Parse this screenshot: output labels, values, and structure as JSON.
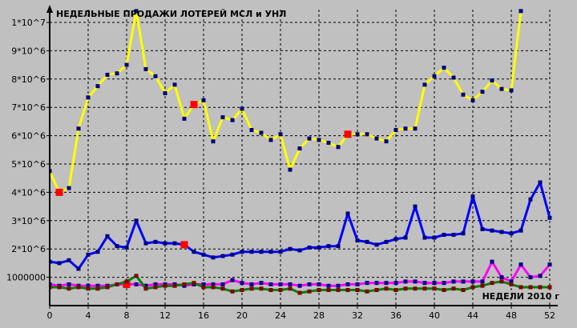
{
  "chart_data": {
    "type": "line",
    "title": "НЕДЕЛЬНЫЕ ПРОДАЖИ ЛОТЕРЕЙ МСЛ и УНЛ",
    "xlabel": "НЕДЕЛИ 2010 г",
    "ylabel": "",
    "xlim": [
      0,
      52
    ],
    "ylim": [
      0,
      10000000
    ],
    "grid": true,
    "x_ticks": [
      0,
      4,
      8,
      12,
      16,
      20,
      24,
      28,
      32,
      36,
      40,
      44,
      48,
      52
    ],
    "x_tick_labels": [
      "0",
      "4",
      "8",
      "12",
      "16",
      "20",
      "24",
      "28",
      "32",
      "36",
      "40",
      "44",
      "48",
      "52"
    ],
    "y_ticks": [
      1000000,
      2000000,
      3000000,
      4000000,
      5000000,
      6000000,
      7000000,
      8000000,
      9000000,
      10000000
    ],
    "y_tick_labels": [
      "1000000",
      "2*10^6",
      "3*10^6",
      "4*10^6",
      "5*10^6",
      "6*10^6",
      "7*10^6",
      "8*10^6",
      "9*10^6",
      "1*10^7"
    ],
    "colors": {
      "background": "#c0c0c0",
      "axis": "#000000",
      "grid": "#000000",
      "series_yellow": "#ffff00",
      "series_blue": "#0000ff",
      "series_magenta": "#ff00ff",
      "series_green": "#008000",
      "marker_dark": "#000080",
      "marker_highlight": "#ff0000"
    },
    "series": [
      {
        "color": "#ffff00",
        "marker": "#000080",
        "x": [
          0,
          1,
          2,
          3,
          4,
          5,
          6,
          7,
          8,
          9,
          10,
          11,
          12,
          13,
          14,
          15,
          16,
          17,
          18,
          19,
          20,
          21,
          22,
          23,
          24,
          25,
          26,
          27,
          28,
          29,
          30,
          31,
          32,
          33,
          34,
          35,
          36,
          37,
          38,
          39,
          40,
          41,
          42,
          43,
          44,
          45,
          46,
          47,
          48,
          49
        ],
        "values": [
          4750000,
          4000000,
          4150000,
          6250000,
          7350000,
          7750000,
          8150000,
          8200000,
          8500000,
          10400000,
          8350000,
          8100000,
          7500000,
          7800000,
          6600000,
          7100000,
          7250000,
          5800000,
          6650000,
          6550000,
          6950000,
          6200000,
          6100000,
          5850000,
          6050000,
          4800000,
          5550000,
          5900000,
          5850000,
          5750000,
          5600000,
          6050000,
          6050000,
          6050000,
          5900000,
          5800000,
          6200000,
          6250000,
          6250000,
          7800000,
          8100000,
          8400000,
          8050000,
          7450000,
          7250000,
          7550000,
          7950000,
          7650000,
          7600000,
          10400000
        ],
        "highlights": [
          1,
          15,
          31
        ]
      },
      {
        "color": "#0000ff",
        "marker": "#000080",
        "x": [
          0,
          1,
          2,
          3,
          4,
          5,
          6,
          7,
          8,
          9,
          10,
          11,
          12,
          13,
          14,
          15,
          16,
          17,
          18,
          19,
          20,
          21,
          22,
          23,
          24,
          25,
          26,
          27,
          28,
          29,
          30,
          31,
          32,
          33,
          34,
          35,
          36,
          37,
          38,
          39,
          40,
          41,
          42,
          43,
          44,
          45,
          46,
          47,
          48,
          49,
          50,
          51,
          52
        ],
        "values": [
          1550000,
          1500000,
          1600000,
          1300000,
          1800000,
          1900000,
          2450000,
          2100000,
          2050000,
          3000000,
          2200000,
          2250000,
          2200000,
          2200000,
          2150000,
          1900000,
          1800000,
          1700000,
          1750000,
          1800000,
          1900000,
          1900000,
          1900000,
          1900000,
          1900000,
          2000000,
          1950000,
          2050000,
          2050000,
          2100000,
          2100000,
          3250000,
          2300000,
          2250000,
          2150000,
          2250000,
          2350000,
          2400000,
          3500000,
          2400000,
          2400000,
          2500000,
          2500000,
          2550000,
          3850000,
          2700000,
          2650000,
          2600000,
          2550000,
          2650000,
          3750000,
          4350000,
          3100000
        ],
        "highlights": [
          14
        ]
      },
      {
        "color": "#ff00ff",
        "marker": "#000080",
        "x": [
          0,
          1,
          2,
          3,
          4,
          5,
          6,
          7,
          8,
          9,
          10,
          11,
          12,
          13,
          14,
          15,
          16,
          17,
          18,
          19,
          20,
          21,
          22,
          23,
          24,
          25,
          26,
          27,
          28,
          29,
          30,
          31,
          32,
          33,
          34,
          35,
          36,
          37,
          38,
          39,
          40,
          41,
          42,
          43,
          44,
          45,
          46,
          47,
          48,
          49,
          50,
          51,
          52
        ],
        "values": [
          750000,
          700000,
          750000,
          700000,
          700000,
          700000,
          700000,
          750000,
          750000,
          750000,
          700000,
          750000,
          750000,
          750000,
          700000,
          750000,
          750000,
          750000,
          750000,
          900000,
          800000,
          750000,
          800000,
          750000,
          750000,
          750000,
          700000,
          750000,
          750000,
          700000,
          700000,
          750000,
          750000,
          800000,
          800000,
          800000,
          800000,
          850000,
          850000,
          800000,
          800000,
          800000,
          850000,
          850000,
          850000,
          850000,
          1550000,
          1000000,
          850000,
          1450000,
          1000000,
          1050000,
          1450000
        ],
        "highlights": [
          8
        ]
      },
      {
        "color": "#008000",
        "marker": "#800000",
        "x": [
          0,
          1,
          2,
          3,
          4,
          5,
          6,
          7,
          8,
          9,
          10,
          11,
          12,
          13,
          14,
          15,
          16,
          17,
          18,
          19,
          20,
          21,
          22,
          23,
          24,
          25,
          26,
          27,
          28,
          29,
          30,
          31,
          32,
          33,
          34,
          35,
          36,
          37,
          38,
          39,
          40,
          41,
          42,
          43,
          44,
          45,
          46,
          47,
          48,
          49,
          50,
          51,
          52
        ],
        "values": [
          650000,
          650000,
          600000,
          650000,
          600000,
          600000,
          650000,
          750000,
          850000,
          1050000,
          600000,
          650000,
          700000,
          700000,
          750000,
          800000,
          650000,
          650000,
          600000,
          500000,
          550000,
          600000,
          600000,
          550000,
          550000,
          600000,
          450000,
          500000,
          550000,
          550000,
          550000,
          550000,
          550000,
          500000,
          550000,
          600000,
          550000,
          600000,
          600000,
          600000,
          600000,
          550000,
          600000,
          550000,
          650000,
          700000,
          800000,
          850000,
          750000,
          650000,
          650000,
          650000,
          650000
        ],
        "highlights": []
      }
    ]
  }
}
